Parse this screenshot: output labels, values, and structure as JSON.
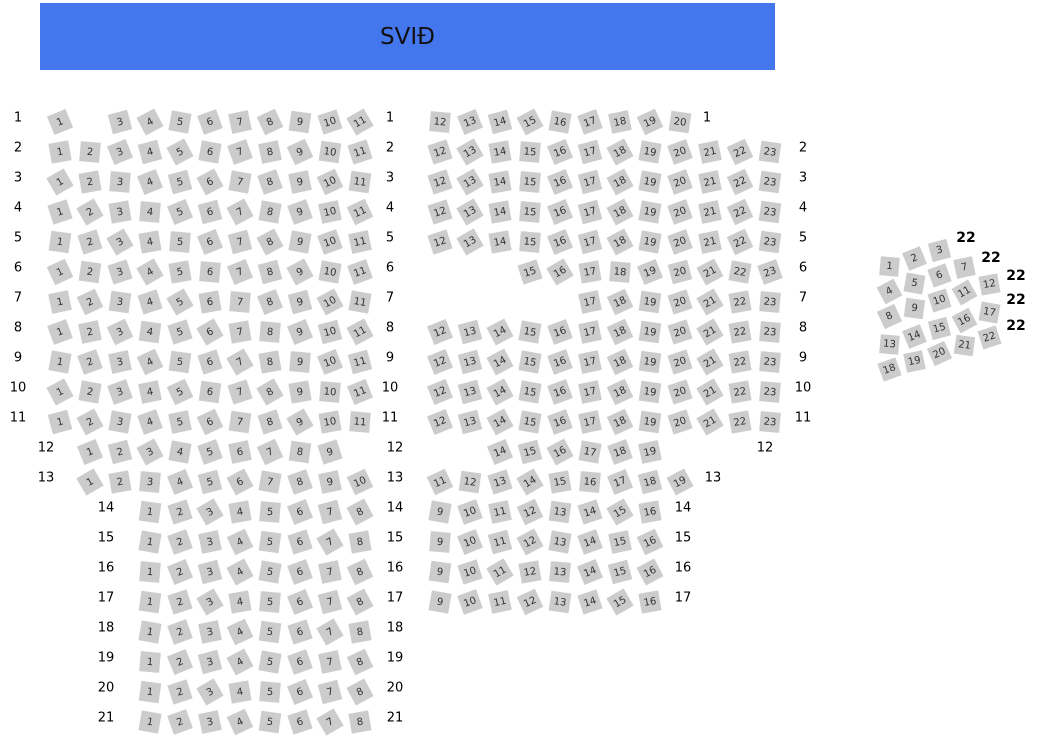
{
  "stage": {
    "label": "SVIÐ",
    "color": "#4477ee"
  },
  "seat_color": "#cccccc",
  "sections": {
    "left": {
      "rows": [
        {
          "label": "1",
          "seats": [
            1,
            3,
            4,
            5,
            6,
            7,
            8,
            9,
            10,
            11
          ]
        },
        {
          "label": "2",
          "seats": [
            1,
            2,
            3,
            4,
            5,
            6,
            7,
            8,
            9,
            10,
            11
          ]
        },
        {
          "label": "3",
          "seats": [
            1,
            2,
            3,
            4,
            5,
            6,
            7,
            8,
            9,
            10,
            11
          ]
        },
        {
          "label": "4",
          "seats": [
            1,
            2,
            3,
            4,
            5,
            6,
            7,
            8,
            9,
            10,
            11
          ]
        },
        {
          "label": "5",
          "seats": [
            1,
            2,
            3,
            4,
            5,
            6,
            7,
            8,
            9,
            10,
            11
          ]
        },
        {
          "label": "6",
          "seats": [
            1,
            2,
            3,
            4,
            5,
            6,
            7,
            8,
            9,
            10,
            11
          ]
        },
        {
          "label": "7",
          "seats": [
            1,
            2,
            3,
            4,
            5,
            6,
            7,
            8,
            9,
            10,
            11
          ]
        },
        {
          "label": "8",
          "seats": [
            1,
            2,
            3,
            4,
            5,
            6,
            7,
            8,
            9,
            10,
            11
          ]
        },
        {
          "label": "9",
          "seats": [
            1,
            2,
            3,
            4,
            5,
            6,
            7,
            8,
            9,
            10,
            11
          ]
        },
        {
          "label": "10",
          "seats": [
            1,
            2,
            3,
            4,
            5,
            6,
            7,
            8,
            9,
            10,
            11
          ]
        },
        {
          "label": "11",
          "seats": [
            1,
            2,
            3,
            4,
            5,
            6,
            7,
            8,
            9,
            10,
            11
          ]
        },
        {
          "label": "12",
          "seats": [
            1,
            2,
            3,
            4,
            5,
            6,
            7,
            8,
            9
          ]
        },
        {
          "label": "13",
          "seats": [
            1,
            2,
            3,
            4,
            5,
            6,
            7,
            8,
            9,
            10
          ]
        },
        {
          "label": "14",
          "seats": [
            1,
            2,
            3,
            4,
            5,
            6,
            7,
            8
          ]
        },
        {
          "label": "15",
          "seats": [
            1,
            2,
            3,
            4,
            5,
            6,
            7,
            8
          ]
        },
        {
          "label": "16",
          "seats": [
            1,
            2,
            3,
            4,
            5,
            6,
            7,
            8
          ]
        },
        {
          "label": "17",
          "seats": [
            1,
            2,
            3,
            4,
            5,
            6,
            7,
            8
          ]
        },
        {
          "label": "18",
          "seats": [
            1,
            2,
            3,
            4,
            5,
            6,
            7,
            8
          ]
        },
        {
          "label": "19",
          "seats": [
            1,
            2,
            3,
            4,
            5,
            6,
            7,
            8
          ]
        },
        {
          "label": "20",
          "seats": [
            1,
            2,
            3,
            4,
            5,
            6,
            7,
            8
          ]
        },
        {
          "label": "21",
          "seats": [
            1,
            2,
            3,
            4,
            5,
            6,
            7,
            8
          ]
        }
      ]
    },
    "right": {
      "rows": [
        {
          "label": "1",
          "seats": [
            12,
            13,
            14,
            15,
            16,
            17,
            18,
            19,
            20
          ]
        },
        {
          "label": "2",
          "seats": [
            12,
            13,
            14,
            15,
            16,
            17,
            18,
            19,
            20,
            21,
            22,
            23
          ]
        },
        {
          "label": "3",
          "seats": [
            12,
            13,
            14,
            15,
            16,
            17,
            18,
            19,
            20,
            21,
            22,
            23
          ]
        },
        {
          "label": "4",
          "seats": [
            12,
            13,
            14,
            15,
            16,
            17,
            18,
            19,
            20,
            21,
            22,
            23
          ]
        },
        {
          "label": "5",
          "seats": [
            12,
            13,
            14,
            15,
            16,
            17,
            18,
            19,
            20,
            21,
            22,
            23
          ]
        },
        {
          "label": "6",
          "seats": [
            15,
            16,
            17,
            18,
            19,
            20,
            21,
            22,
            23
          ]
        },
        {
          "label": "7",
          "seats": [
            17,
            18,
            19,
            20,
            21,
            22,
            23
          ]
        },
        {
          "label": "8",
          "seats": [
            12,
            13,
            14,
            15,
            16,
            17,
            18,
            19,
            20,
            21,
            22,
            23
          ]
        },
        {
          "label": "9",
          "seats": [
            12,
            13,
            14,
            15,
            16,
            17,
            18,
            19,
            20,
            21,
            22,
            23
          ]
        },
        {
          "label": "10",
          "seats": [
            12,
            13,
            14,
            15,
            16,
            17,
            18,
            19,
            20,
            21,
            22,
            23
          ]
        },
        {
          "label": "11",
          "seats": [
            12,
            13,
            14,
            15,
            16,
            17,
            18,
            19,
            20,
            21,
            22,
            23
          ]
        },
        {
          "label": "12",
          "seats": [
            14,
            15,
            16,
            17,
            18,
            19
          ]
        },
        {
          "label": "13",
          "seats": [
            11,
            12,
            13,
            14,
            15,
            16,
            17,
            18,
            19
          ]
        },
        {
          "label": "14",
          "seats": [
            9,
            10,
            11,
            12,
            13,
            14,
            15,
            16
          ]
        },
        {
          "label": "15",
          "seats": [
            9,
            10,
            11,
            12,
            13,
            14,
            15,
            16
          ]
        },
        {
          "label": "16",
          "seats": [
            9,
            10,
            11,
            12,
            13,
            14,
            15,
            16
          ]
        },
        {
          "label": "17",
          "seats": [
            9,
            10,
            11,
            12,
            13,
            14,
            15,
            16
          ]
        }
      ]
    },
    "balcony": {
      "rows": [
        {
          "label": "22",
          "seats": [
            1,
            2,
            3
          ]
        },
        {
          "label": "22",
          "seats": [
            4,
            5,
            6,
            7
          ]
        },
        {
          "label": "22",
          "seats": [
            8,
            9,
            10,
            11,
            12
          ]
        },
        {
          "label": "22",
          "seats": [
            13,
            14,
            15,
            16,
            17
          ]
        },
        {
          "label": "22",
          "seats": [
            18,
            19,
            20,
            21,
            22
          ]
        }
      ]
    }
  }
}
